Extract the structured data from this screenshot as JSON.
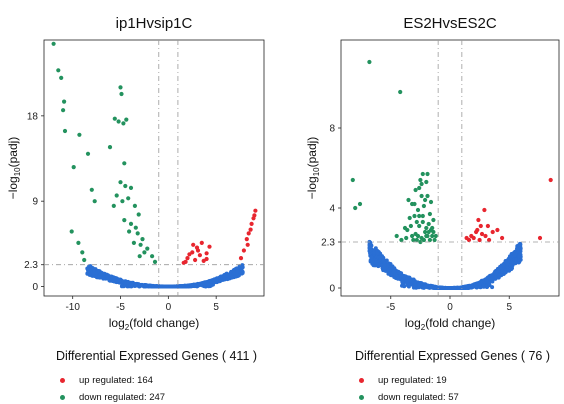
{
  "colors": {
    "up": "#e8262f",
    "down": "#23925e",
    "ns": "#2a6fd4",
    "panel_bg": "#ffffff",
    "ref_line": "#9a9a9a"
  },
  "chart_data": [
    {
      "type": "scatter",
      "title": "ip1Hvsip1C",
      "xlabel_main": "log",
      "xlabel_sub": "2",
      "xlabel_tail": "(fold change)",
      "ylabel_main": "−log",
      "ylabel_sub": "10",
      "ylabel_tail": "(padj)",
      "xlim": [
        -13,
        10
      ],
      "ylim": [
        -1,
        26
      ],
      "xticks": [
        {
          "value": -10,
          "label": "-10"
        },
        {
          "value": -5,
          "label": "-5"
        },
        {
          "value": 0,
          "label": "0"
        },
        {
          "value": 5,
          "label": "5"
        }
      ],
      "yticks": [
        {
          "value": 0,
          "label": "0"
        },
        {
          "value": 2.3,
          "label": "2.3"
        },
        {
          "value": 9,
          "label": "9"
        },
        {
          "value": 18,
          "label": "18"
        }
      ],
      "thresholds": {
        "fc": [
          -1,
          1
        ],
        "padj": 2.3
      },
      "series": {
        "up": [
          [
            2.0,
            3.0
          ],
          [
            2.5,
            3.6
          ],
          [
            3.0,
            4.1
          ],
          [
            3.5,
            4.6
          ],
          [
            2.8,
            2.8
          ],
          [
            3.3,
            3.3
          ],
          [
            4.0,
            3.5
          ],
          [
            1.8,
            2.6
          ],
          [
            2.2,
            3.4
          ],
          [
            3.7,
            2.7
          ],
          [
            4.3,
            4.2
          ],
          [
            1.6,
            2.5
          ],
          [
            2.6,
            4.4
          ],
          [
            3.1,
            3.8
          ],
          [
            4.0,
            2.9
          ],
          [
            8.2,
            5.0
          ],
          [
            8.6,
            6.0
          ],
          [
            8.9,
            7.2
          ],
          [
            9.1,
            8.0
          ],
          [
            8.4,
            5.6
          ],
          [
            7.9,
            3.8
          ],
          [
            7.6,
            3.0
          ],
          [
            8.7,
            6.6
          ],
          [
            8.3,
            4.4
          ],
          [
            9.0,
            7.5
          ]
        ],
        "down": [
          [
            -12.0,
            25.6
          ],
          [
            -11.5,
            22.8
          ],
          [
            -11.2,
            22.0
          ],
          [
            -10.9,
            19.5
          ],
          [
            -11.0,
            18.6
          ],
          [
            -10.8,
            16.4
          ],
          [
            -9.3,
            16.0
          ],
          [
            -9.9,
            12.6
          ],
          [
            -8.4,
            14.0
          ],
          [
            -8.0,
            10.2
          ],
          [
            -7.7,
            9.0
          ],
          [
            -5.0,
            21.0
          ],
          [
            -4.9,
            20.3
          ],
          [
            -5.6,
            17.7
          ],
          [
            -5.2,
            17.4
          ],
          [
            -4.7,
            17.2
          ],
          [
            -4.4,
            17.6
          ],
          [
            -6.1,
            14.7
          ],
          [
            -4.6,
            13.0
          ],
          [
            -5.0,
            11.0
          ],
          [
            -4.5,
            10.6
          ],
          [
            -3.9,
            10.4
          ],
          [
            -5.4,
            9.6
          ],
          [
            -4.8,
            9.0
          ],
          [
            -4.2,
            9.3
          ],
          [
            -3.5,
            8.5
          ],
          [
            -3.1,
            7.6
          ],
          [
            -5.7,
            8.5
          ],
          [
            -4.6,
            7.0
          ],
          [
            -3.9,
            6.6
          ],
          [
            -3.2,
            5.6
          ],
          [
            -2.7,
            5.0
          ],
          [
            -2.2,
            4.0
          ],
          [
            -3.6,
            4.6
          ],
          [
            -4.1,
            5.8
          ],
          [
            -1.7,
            3.2
          ],
          [
            -1.4,
            2.6
          ],
          [
            -2.5,
            3.6
          ],
          [
            -3.0,
            3.2
          ],
          [
            -9.4,
            4.6
          ],
          [
            -10.1,
            5.8
          ],
          [
            -9.0,
            3.6
          ],
          [
            -8.8,
            2.8
          ],
          [
            -3.4,
            6.2
          ],
          [
            -2.9,
            4.4
          ]
        ],
        "ns_curves": [
          {
            "side": "left",
            "x_at_threshold": -8.5,
            "apex": -0.1
          },
          {
            "side": "right",
            "x_at_threshold": 7.8,
            "apex": 0.2
          }
        ]
      },
      "legend": {
        "title": "Differential Expressed Genes ( 411 )",
        "up_label": "up regulated: 164",
        "down_label": "down regulated: 247"
      }
    },
    {
      "type": "scatter",
      "title": "ES2HvsES2C",
      "xlabel_main": "log",
      "xlabel_sub": "2",
      "xlabel_tail": "(fold change)",
      "ylabel_main": "−log",
      "ylabel_sub": "10",
      "ylabel_tail": "(padj)",
      "xlim": [
        -9.2,
        9.2
      ],
      "ylim": [
        -0.4,
        12.4
      ],
      "xticks": [
        {
          "value": -5,
          "label": "-5"
        },
        {
          "value": 0,
          "label": "0"
        },
        {
          "value": 5,
          "label": "5"
        }
      ],
      "yticks": [
        {
          "value": 0,
          "label": "0"
        },
        {
          "value": 2.3,
          "label": "2.3"
        },
        {
          "value": 4,
          "label": "4"
        },
        {
          "value": 8,
          "label": "8"
        }
      ],
      "thresholds": {
        "fc": [
          -1,
          1
        ],
        "padj": 2.3
      },
      "series": {
        "up": [
          [
            8.5,
            5.4
          ],
          [
            2.9,
            3.9
          ],
          [
            3.2,
            3.1
          ],
          [
            2.6,
            3.1
          ],
          [
            2.3,
            2.9
          ],
          [
            2.7,
            2.7
          ],
          [
            2.0,
            2.5
          ],
          [
            1.6,
            2.4
          ],
          [
            3.6,
            2.8
          ],
          [
            2.4,
            3.4
          ],
          [
            4.4,
            2.5
          ],
          [
            3.0,
            2.6
          ],
          [
            7.6,
            2.5
          ],
          [
            2.2,
            2.8
          ],
          [
            1.8,
            2.6
          ],
          [
            3.3,
            2.4
          ],
          [
            2.5,
            2.4
          ],
          [
            4.0,
            2.9
          ],
          [
            1.4,
            2.5
          ]
        ],
        "down": [
          [
            -6.8,
            11.3
          ],
          [
            -4.2,
            9.8
          ],
          [
            -8.2,
            5.4
          ],
          [
            -7.6,
            4.2
          ],
          [
            -8.0,
            4.0
          ],
          [
            -2.3,
            5.7
          ],
          [
            -1.9,
            5.7
          ],
          [
            -2.5,
            5.4
          ],
          [
            -2.0,
            5.3
          ],
          [
            -2.9,
            4.9
          ],
          [
            -2.4,
            4.6
          ],
          [
            -3.5,
            4.4
          ],
          [
            -3.2,
            4.2
          ],
          [
            -1.6,
            4.3
          ],
          [
            -2.7,
            3.9
          ],
          [
            -3.0,
            3.6
          ],
          [
            -2.3,
            3.6
          ],
          [
            -1.8,
            3.2
          ],
          [
            -2.6,
            3.1
          ],
          [
            -1.4,
            3.4
          ],
          [
            -3.3,
            3.1
          ],
          [
            -2.1,
            2.8
          ],
          [
            -1.5,
            2.6
          ],
          [
            -2.9,
            2.7
          ],
          [
            -1.3,
            2.4
          ],
          [
            -3.7,
            2.5
          ],
          [
            -4.1,
            2.4
          ],
          [
            -2.4,
            2.5
          ],
          [
            -1.9,
            2.6
          ],
          [
            -3.6,
            2.9
          ],
          [
            -2.8,
            3.3
          ],
          [
            -1.7,
            3.7
          ],
          [
            -2.2,
            4.1
          ],
          [
            -2.6,
            5.0
          ],
          [
            -3.1,
            2.4
          ],
          [
            -1.6,
            2.9
          ],
          [
            -2.0,
            3.0
          ],
          [
            -1.2,
            2.6
          ],
          [
            -3.4,
            3.5
          ],
          [
            -2.5,
            2.3
          ],
          [
            -1.5,
            3.0
          ],
          [
            -2.2,
            2.4
          ],
          [
            -3.8,
            3.0
          ],
          [
            -4.5,
            2.6
          ],
          [
            -2.7,
            2.6
          ],
          [
            -1.9,
            4.6
          ],
          [
            -2.4,
            5.2
          ],
          [
            -2.1,
            4.4
          ],
          [
            -1.7,
            2.4
          ],
          [
            -3.0,
            4.2
          ],
          [
            -2.8,
            2.4
          ],
          [
            -1.4,
            2.8
          ],
          [
            -2.3,
            3.3
          ],
          [
            -3.2,
            2.6
          ],
          [
            -1.8,
            2.8
          ],
          [
            -2.6,
            3.6
          ],
          [
            -2.0,
            2.6
          ]
        ],
        "ns_curves": [
          {
            "side": "left",
            "x_at_threshold": -6.8,
            "apex": -0.1
          },
          {
            "side": "right",
            "x_at_threshold": 6.0,
            "apex": 0.2
          }
        ]
      },
      "legend": {
        "title": "Differential Expressed Genes ( 76 )",
        "up_label": "up regulated: 19",
        "down_label": "down regulated: 57"
      }
    }
  ]
}
